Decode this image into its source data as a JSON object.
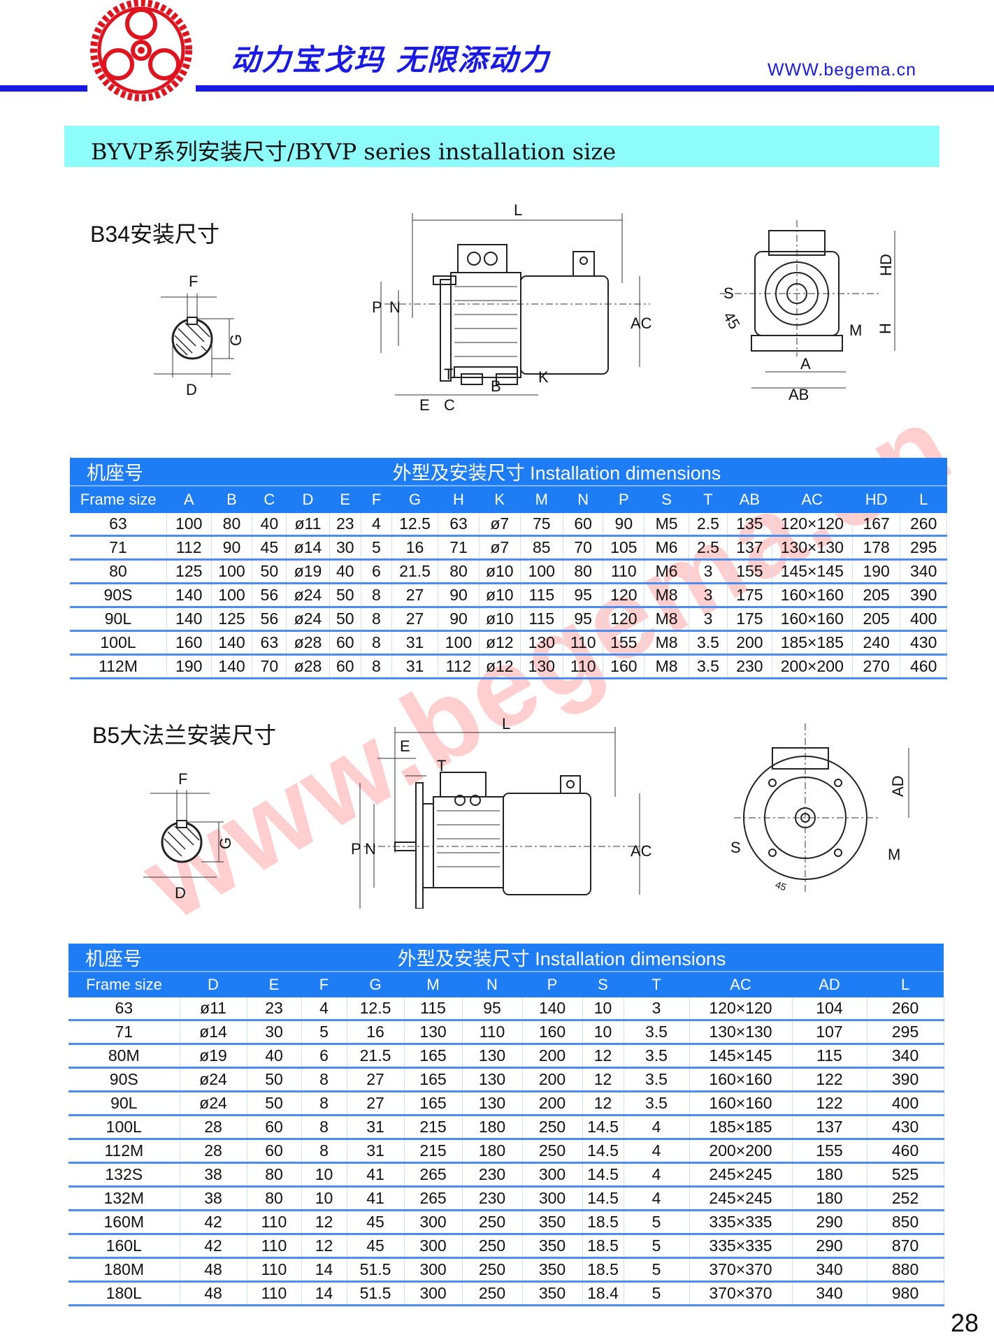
{
  "header": {
    "slogan": "动力宝戈玛  无限添动力",
    "url": "WWW.begema.cn",
    "brand_color": "#1a1ae6"
  },
  "banner": {
    "title": "BYVP系列安装尺寸/BYVP series installation size",
    "color": "#8ffcfc"
  },
  "watermark": "www.begema.cn",
  "b34": {
    "label": "B34安装尺寸",
    "shaft_labels": {
      "F": "F",
      "G": "G",
      "D": "D"
    },
    "side_labels": {
      "L": "L",
      "P": "P",
      "N": "N",
      "AC": "AC",
      "T": "T",
      "B": "B",
      "K": "K",
      "E": "E",
      "C": "C"
    },
    "front_labels": {
      "HD": "HD",
      "S": "S",
      "angle": "45",
      "M": "M",
      "H": "H",
      "A": "A",
      "AB": "AB"
    },
    "table": {
      "title_cn": "机座号",
      "title": "外型及安装尺寸   Installation dimensions",
      "headers": [
        "Frame size",
        "A",
        "B",
        "C",
        "D",
        "E",
        "F",
        "G",
        "H",
        "K",
        "M",
        "N",
        "P",
        "S",
        "T",
        "AB",
        "AC",
        "HD",
        "L"
      ],
      "rows": [
        [
          "63",
          "100",
          "80",
          "40",
          "ø11",
          "23",
          "4",
          "12.5",
          "63",
          "ø7",
          "75",
          "60",
          "90",
          "M5",
          "2.5",
          "135",
          "120×120",
          "167",
          "260"
        ],
        [
          "71",
          "112",
          "90",
          "45",
          "ø14",
          "30",
          "5",
          "16",
          "71",
          "ø7",
          "85",
          "70",
          "105",
          "M6",
          "2.5",
          "137",
          "130×130",
          "178",
          "295"
        ],
        [
          "80",
          "125",
          "100",
          "50",
          "ø19",
          "40",
          "6",
          "21.5",
          "80",
          "ø10",
          "100",
          "80",
          "110",
          "M6",
          "3",
          "155",
          "145×145",
          "190",
          "340"
        ],
        [
          "90S",
          "140",
          "100",
          "56",
          "ø24",
          "50",
          "8",
          "27",
          "90",
          "ø10",
          "115",
          "95",
          "120",
          "M8",
          "3",
          "175",
          "160×160",
          "205",
          "390"
        ],
        [
          "90L",
          "140",
          "125",
          "56",
          "ø24",
          "50",
          "8",
          "27",
          "90",
          "ø10",
          "115",
          "95",
          "120",
          "M8",
          "3",
          "175",
          "160×160",
          "205",
          "400"
        ],
        [
          "100L",
          "160",
          "140",
          "63",
          "ø28",
          "60",
          "8",
          "31",
          "100",
          "ø12",
          "130",
          "110",
          "155",
          "M8",
          "3.5",
          "200",
          "185×185",
          "240",
          "430"
        ],
        [
          "112M",
          "190",
          "140",
          "70",
          "ø28",
          "60",
          "8",
          "31",
          "112",
          "ø12",
          "130",
          "110",
          "160",
          "M8",
          "3.5",
          "230",
          "200×200",
          "270",
          "460"
        ]
      ]
    }
  },
  "b5": {
    "label": "B5大法兰安装尺寸",
    "shaft_labels": {
      "F": "F",
      "G": "G",
      "D": "D"
    },
    "side_labels": {
      "L": "L",
      "E": "E",
      "T": "T",
      "P": "P",
      "N": "N",
      "AC": "AC"
    },
    "front_labels": {
      "AD": "AD",
      "S": "S",
      "M": "M",
      "angle": "45"
    },
    "table": {
      "title_cn": "机座号",
      "title": "外型及安装尺寸   Installation dimensions",
      "headers": [
        "Frame size",
        "D",
        "E",
        "F",
        "G",
        "M",
        "N",
        "P",
        "S",
        "T",
        "AC",
        "AD",
        "L"
      ],
      "rows": [
        [
          "63",
          "ø11",
          "23",
          "4",
          "12.5",
          "115",
          "95",
          "140",
          "10",
          "3",
          "120×120",
          "104",
          "260"
        ],
        [
          "71",
          "ø14",
          "30",
          "5",
          "16",
          "130",
          "110",
          "160",
          "10",
          "3.5",
          "130×130",
          "107",
          "295"
        ],
        [
          "80M",
          "ø19",
          "40",
          "6",
          "21.5",
          "165",
          "130",
          "200",
          "12",
          "3.5",
          "145×145",
          "115",
          "340"
        ],
        [
          "90S",
          "ø24",
          "50",
          "8",
          "27",
          "165",
          "130",
          "200",
          "12",
          "3.5",
          "160×160",
          "122",
          "390"
        ],
        [
          "90L",
          "ø24",
          "50",
          "8",
          "27",
          "165",
          "130",
          "200",
          "12",
          "3.5",
          "160×160",
          "122",
          "400"
        ],
        [
          "100L",
          "28",
          "60",
          "8",
          "31",
          "215",
          "180",
          "250",
          "14.5",
          "4",
          "185×185",
          "137",
          "430"
        ],
        [
          "112M",
          "28",
          "60",
          "8",
          "31",
          "215",
          "180",
          "250",
          "14.5",
          "4",
          "200×200",
          "155",
          "460"
        ],
        [
          "132S",
          "38",
          "80",
          "10",
          "41",
          "265",
          "230",
          "300",
          "14.5",
          "4",
          "245×245",
          "180",
          "525"
        ],
        [
          "132M",
          "38",
          "80",
          "10",
          "41",
          "265",
          "230",
          "300",
          "14.5",
          "4",
          "245×245",
          "180",
          "252"
        ],
        [
          "160M",
          "42",
          "110",
          "12",
          "45",
          "300",
          "250",
          "350",
          "18.5",
          "5",
          "335×335",
          "290",
          "850"
        ],
        [
          "160L",
          "42",
          "110",
          "12",
          "45",
          "300",
          "250",
          "350",
          "18.5",
          "5",
          "335×335",
          "290",
          "870"
        ],
        [
          "180M",
          "48",
          "110",
          "14",
          "51.5",
          "300",
          "250",
          "350",
          "18.5",
          "5",
          "370×370",
          "340",
          "880"
        ],
        [
          "180L",
          "48",
          "110",
          "14",
          "51.5",
          "300",
          "250",
          "350",
          "18.4",
          "5",
          "370×370",
          "340",
          "980"
        ]
      ]
    }
  },
  "table_header_color": "#1e7cf5",
  "page_number": "28"
}
